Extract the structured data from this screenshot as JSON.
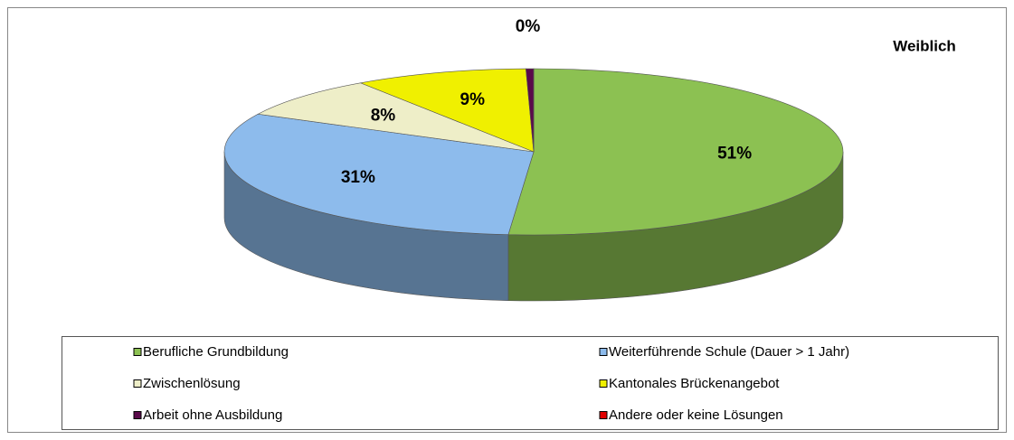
{
  "chart_data": {
    "type": "pie3d",
    "title": "Weiblich",
    "series": [
      {
        "name": "Berufliche Grundbildung",
        "color": "#8cc152",
        "values": [
          51
        ],
        "value_labels": [
          "51%"
        ]
      },
      {
        "name": "Weiterführende Schule (Dauer > 1 Jahr)",
        "color": "#8dbbec",
        "values": [
          31
        ],
        "value_labels": [
          "31%"
        ]
      },
      {
        "name": "Zwischenlösung",
        "color": "#eeeec8",
        "values": [
          8
        ],
        "value_labels": [
          "8%"
        ]
      },
      {
        "name": "Kantonales Brückenangebot",
        "color": "#f0f000",
        "values": [
          9
        ],
        "value_labels": [
          "9%"
        ]
      },
      {
        "name": "Arbeit ohne Ausbildung",
        "color": "#5a0a4a",
        "values": [
          0.4
        ],
        "value_labels": [
          "0%"
        ]
      },
      {
        "name": "Andere oder keine Lösungen",
        "color": "#e00000",
        "values": [
          0
        ],
        "value_labels": [
          null
        ]
      }
    ]
  }
}
